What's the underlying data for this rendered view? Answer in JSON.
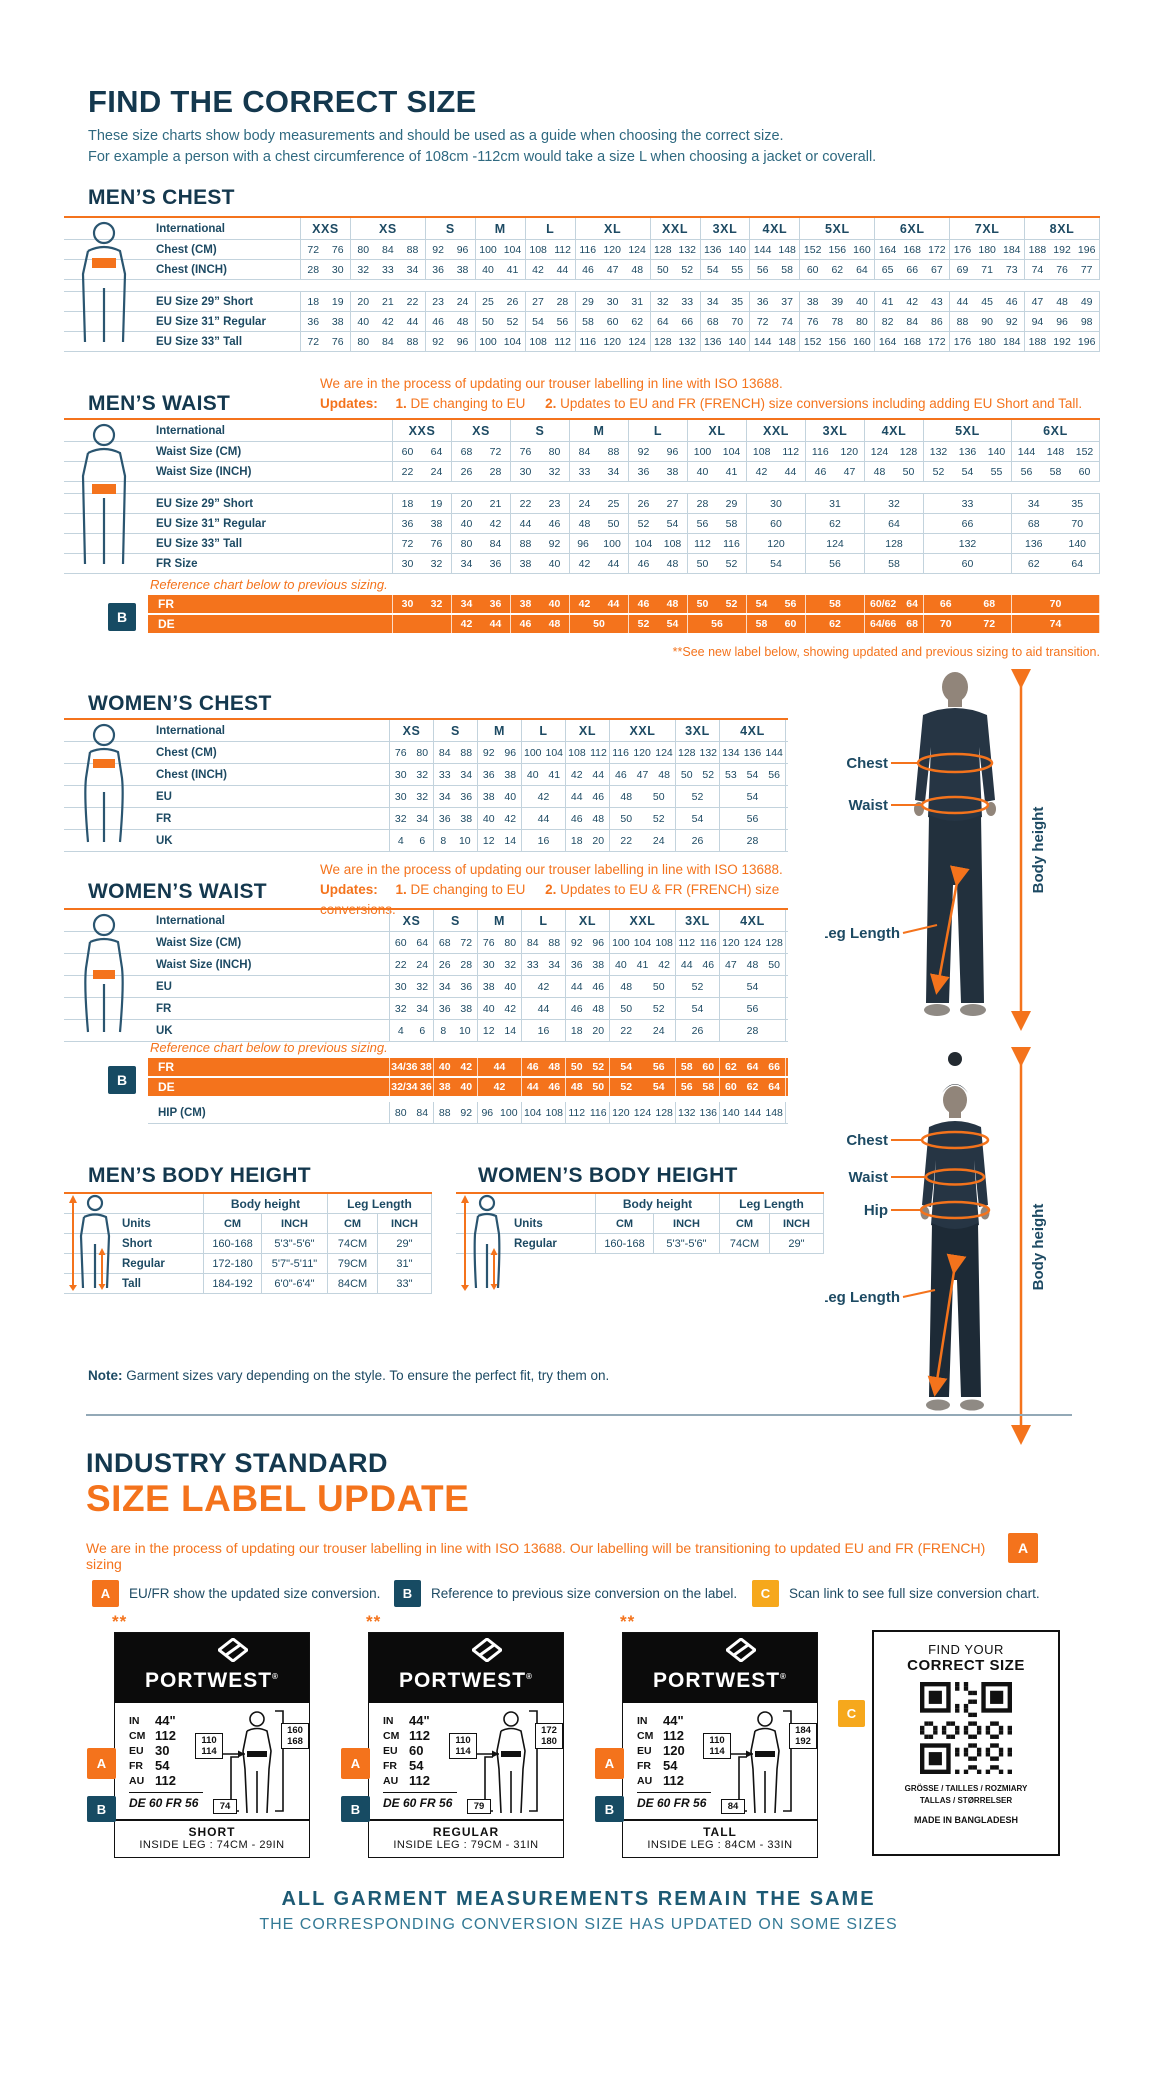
{
  "page": {
    "title": "FIND THE CORRECT SIZE",
    "intro": [
      "These size charts show body measurements and should be used as a guide when choosing the correct size.",
      "For example a person with a chest circumference of 108cm -112cm would take a size L when choosing a jacket or coverall."
    ],
    "note_bold": "Note:",
    "note_rest": " Garment sizes vary depending on the style. To ensure the perfect fit, try them on."
  },
  "colors": {
    "navy": "#14384e",
    "orange": "#f4731c",
    "amber": "#f6a81c",
    "badge_navy": "#174b63"
  },
  "mens_chest": {
    "title": "MEN’S CHEST",
    "corner": "International",
    "groups": [
      "XXS",
      "XS",
      "S",
      "M",
      "L",
      "XL",
      "XXL",
      "3XL",
      "4XL",
      "5XL",
      "6XL",
      "7XL",
      "8XL"
    ],
    "subs": [
      2,
      3,
      2,
      2,
      2,
      3,
      2,
      2,
      2,
      3,
      3,
      3,
      3
    ],
    "rows": [
      {
        "label": "Chest (CM)",
        "cells": [
          "72 76",
          "80 84 88",
          "92 96",
          "100 104",
          "108 112",
          "116 120 124",
          "128 132",
          "136 140",
          "144 148",
          "152 156 160",
          "164 168 172",
          "176 180 184",
          "188 192 196"
        ]
      },
      {
        "label": "Chest (INCH)",
        "cells": [
          "28 30",
          "32 33 34",
          "36 38",
          "40 41",
          "42 44",
          "46 47 48",
          "50 52",
          "54 55",
          "56 58",
          "60 62 64",
          "65 66 67",
          "69 71 73",
          "74 76 77"
        ]
      },
      {
        "spacer": true
      },
      {
        "label": "EU Size 29” Short",
        "cells": [
          "18 19",
          "20 21 22",
          "23 24",
          "25 26",
          "27 28",
          "29 30 31",
          "32 33",
          "34 35",
          "36 37",
          "38 39 40",
          "41 42 43",
          "44 45 46",
          "47 48 49"
        ]
      },
      {
        "label": "EU Size 31” Regular",
        "cells": [
          "36 38",
          "40 42 44",
          "46 48",
          "50 52",
          "54 56",
          "58 60 62",
          "64 66",
          "68 70",
          "72 74",
          "76 78 80",
          "82 84 86",
          "88 90 92",
          "94 96 98"
        ]
      },
      {
        "label": "EU Size 33” Tall",
        "cells": [
          "72 76",
          "80 84 88",
          "92 96",
          "100 104",
          "108 112",
          "116 120 124",
          "128 132",
          "136 140",
          "144 148",
          "152 156 160",
          "164 168 172",
          "176 180 184",
          "188 192 196"
        ]
      }
    ]
  },
  "mens_waist": {
    "title": "MEN’S WAIST",
    "update_note": {
      "line1": "We are in the process of updating our trouser labelling in line with ISO 13688.",
      "updates_label": "Updates:",
      "item1_num": "1.",
      "item1": " DE changing to EU",
      "item2_num": "2.",
      "item2": " Updates to EU and FR (FRENCH) size conversions including adding EU Short and Tall."
    },
    "corner": "International",
    "groups": [
      "XXS",
      "XS",
      "S",
      "M",
      "L",
      "XL",
      "XXL",
      "3XL",
      "4XL",
      "5XL",
      "6XL"
    ],
    "subs": [
      2,
      2,
      2,
      2,
      2,
      2,
      2,
      2,
      2,
      3,
      3
    ],
    "rows": [
      {
        "label": "Waist Size (CM)",
        "cells": [
          "60 64",
          "68 72",
          "76 80",
          "84 88",
          "92 96",
          "100 104",
          "108 112",
          "116 120",
          "124 128",
          "132 136 140",
          "144 148 152"
        ]
      },
      {
        "label": "Waist Size (INCH)",
        "cells": [
          "22 24",
          "26 28",
          "30 32",
          "33 34",
          "36 38",
          "40 41",
          "42 44",
          "46 47",
          "48 50",
          "52 54 55",
          "56 58 60"
        ]
      },
      {
        "spacer": true
      },
      {
        "label": "EU Size 29” Short",
        "cells": [
          "18 19",
          "20 21",
          "22 23",
          "24 25",
          "26 27",
          "28 29",
          "30",
          "31",
          "32",
          "33",
          "34 35"
        ]
      },
      {
        "label": "EU Size 31” Regular",
        "cells": [
          "36 38",
          "40 42",
          "44 46",
          "48 50",
          "52 54",
          "56 58",
          "60",
          "62",
          "64",
          "66",
          "68 70"
        ]
      },
      {
        "label": "EU Size 33” Tall",
        "cells": [
          "72 76",
          "80 84",
          "88 92",
          "96 100",
          "104 108",
          "112 116",
          "120",
          "124",
          "128",
          "132",
          "136 140"
        ]
      },
      {
        "label": "FR Size",
        "cells": [
          "30 32",
          "34 36",
          "38 40",
          "42 44",
          "46 48",
          "50 52",
          "54",
          "56",
          "58",
          "60",
          "62 64"
        ]
      }
    ],
    "reference_note": "Reference chart below to previous sizing.",
    "badge": "B",
    "ref_rows": [
      {
        "label": "FR",
        "cells": [
          "30 32",
          "34 36",
          "38 40",
          "42 44",
          "46 48",
          "50 52",
          "54 56",
          "58",
          "60/62 64",
          "66 68",
          "70"
        ]
      },
      {
        "label": "DE",
        "cells": [
          "",
          "42 44",
          "46 48",
          "50",
          "52 54",
          "56",
          "58 60",
          "62",
          "64/66 68",
          "70 72",
          "74"
        ]
      }
    ],
    "footnote": "**See new label below, showing updated and previous sizing to aid transition."
  },
  "womens_chest": {
    "title": "WOMEN’S CHEST",
    "corner": "International",
    "groups": [
      "XS",
      "S",
      "M",
      "L",
      "XL",
      "XXL",
      "3XL",
      "4XL"
    ],
    "subs": [
      2,
      2,
      2,
      2,
      2,
      3,
      2,
      3
    ],
    "rows": [
      {
        "label": "Chest (CM)",
        "cells": [
          "76 80",
          "84 88",
          "92 96",
          "100 104",
          "108 112",
          "116 120 124",
          "128 132",
          "134 136 144"
        ]
      },
      {
        "label": "Chest (INCH)",
        "cells": [
          "30 32",
          "33 34",
          "36 38",
          "40 41",
          "42 44",
          "46 47 48",
          "50 52",
          "53 54 56"
        ]
      },
      {
        "label": "EU",
        "cells": [
          "30 32",
          "34 36",
          "38 40",
          "42",
          "44 46",
          "48 50",
          "52",
          "54"
        ]
      },
      {
        "label": "FR",
        "cells": [
          "32 34",
          "36 38",
          "40 42",
          "44",
          "46 48",
          "50 52",
          "54",
          "56"
        ]
      },
      {
        "label": "UK",
        "cells": [
          "4 6",
          "8 10",
          "12 14",
          "16",
          "18 20",
          "22 24",
          "26",
          "28"
        ]
      }
    ]
  },
  "womens_waist": {
    "title": "WOMEN’S WAIST",
    "update_note": {
      "line1": "We are in the process of updating our trouser labelling in line with ISO 13688.",
      "updates_label": "Updates:",
      "item1_num": "1.",
      "item1": " DE changing to EU",
      "item2_num": "2.",
      "item2": " Updates to EU & FR (FRENCH) size conversions."
    },
    "corner": "International",
    "groups": [
      "XS",
      "S",
      "M",
      "L",
      "XL",
      "XXL",
      "3XL",
      "4XL"
    ],
    "subs": [
      2,
      2,
      2,
      2,
      2,
      3,
      2,
      3
    ],
    "rows": [
      {
        "label": "Waist Size (CM)",
        "cells": [
          "60 64",
          "68 72",
          "76 80",
          "84 88",
          "92 96",
          "100 104 108",
          "112 116",
          "120 124 128"
        ]
      },
      {
        "label": "Waist Size (INCH)",
        "cells": [
          "22 24",
          "26 28",
          "30 32",
          "33 34",
          "36 38",
          "40 41 42",
          "44 46",
          "47 48 50"
        ]
      },
      {
        "label": "EU",
        "cells": [
          "30 32",
          "34 36",
          "38 40",
          "42",
          "44 46",
          "48 50",
          "52",
          "54"
        ]
      },
      {
        "label": "FR",
        "cells": [
          "32 34",
          "36 38",
          "40 42",
          "44",
          "46 48",
          "50 52",
          "54",
          "56"
        ]
      },
      {
        "label": "UK",
        "cells": [
          "4 6",
          "8 10",
          "12 14",
          "16",
          "18 20",
          "22 24",
          "26",
          "28"
        ]
      }
    ],
    "reference_note": "Reference chart below to previous sizing.",
    "badge": "B",
    "ref_rows": [
      {
        "label": "FR",
        "cells": [
          "34/36 38",
          "40 42",
          "44",
          "46 48",
          "50 52",
          "54 56",
          "58 60",
          "62 64 66"
        ]
      },
      {
        "label": "DE",
        "cells": [
          "32/34 36",
          "38 40",
          "42",
          "44 46",
          "48 50",
          "52 54",
          "56 58",
          "60 62 64"
        ]
      }
    ],
    "hip_rows": [
      {
        "label": "HIP (CM)",
        "cells": [
          "80 84",
          "88 92",
          "96 100",
          "104 108",
          "112 116",
          "120 124 128",
          "132 136",
          "140 144 148"
        ]
      }
    ]
  },
  "figure_annotations": {
    "male": {
      "chest": "Chest",
      "waist": "Waist",
      "leg": "Leg Length",
      "height": "Body height"
    },
    "female": {
      "chest": "Chest",
      "waist": "Waist",
      "hip": "Hip",
      "leg": "Leg Length",
      "height": "Body height"
    }
  },
  "mens_height": {
    "title": "MEN’S BODY HEIGHT",
    "group_headers": [
      "Body height",
      "Leg Length"
    ],
    "units_label": "Units",
    "units": [
      "CM",
      "INCH",
      "CM",
      "INCH"
    ],
    "rows": [
      {
        "label": "Short",
        "cells": [
          "160-168",
          "5'3\"-5'6\"",
          "74CM",
          "29\""
        ]
      },
      {
        "label": "Regular",
        "cells": [
          "172-180",
          "5'7\"-5'11\"",
          "79CM",
          "31\""
        ]
      },
      {
        "label": "Tall",
        "cells": [
          "184-192",
          "6'0\"-6'4\"",
          "84CM",
          "33\""
        ]
      }
    ]
  },
  "womens_height": {
    "title": "WOMEN’S BODY HEIGHT",
    "group_headers": [
      "Body height",
      "Leg Length"
    ],
    "units_label": "Units",
    "units": [
      "CM",
      "INCH",
      "CM",
      "INCH"
    ],
    "rows": [
      {
        "label": "Regular",
        "cells": [
          "160-168",
          "5'3\"-5'6\"",
          "74CM",
          "29\""
        ]
      }
    ]
  },
  "industry": {
    "heading1": "INDUSTRY STANDARD",
    "heading2": "SIZE LABEL UPDATE",
    "paragraph": "We are in the process of updating our trouser labelling in line with ISO 13688. Our labelling will be transitioning to updated EU and FR (FRENCH) sizing",
    "badge_a": "A",
    "legend": [
      {
        "badge": "A",
        "text": "EU/FR show the updated size conversion."
      },
      {
        "badge": "B",
        "text": "Reference to previous size conversion on the label."
      },
      {
        "badge": "C",
        "text": "Scan link to see full size conversion chart."
      }
    ]
  },
  "labels": [
    {
      "stars": "**",
      "brand": "PORTWEST",
      "reg": "®",
      "specs": [
        [
          "IN",
          "44\""
        ],
        [
          "CM",
          "112"
        ],
        [
          "EU",
          "30"
        ],
        [
          "FR",
          "54"
        ],
        [
          "AU",
          "112"
        ]
      ],
      "prev": "DE 60 FR 56",
      "waist_box": [
        "110",
        "114"
      ],
      "height_box": [
        "160",
        "168"
      ],
      "leg_box": "74",
      "fit": "SHORT",
      "inside_leg": "INSIDE LEG : 74CM - 29IN"
    },
    {
      "stars": "**",
      "brand": "PORTWEST",
      "reg": "®",
      "specs": [
        [
          "IN",
          "44\""
        ],
        [
          "CM",
          "112"
        ],
        [
          "EU",
          "60"
        ],
        [
          "FR",
          "54"
        ],
        [
          "AU",
          "112"
        ]
      ],
      "prev": "DE 60 FR 56",
      "waist_box": [
        "110",
        "114"
      ],
      "height_box": [
        "172",
        "180"
      ],
      "leg_box": "79",
      "fit": "REGULAR",
      "inside_leg": "INSIDE LEG : 79CM - 31IN"
    },
    {
      "stars": "**",
      "brand": "PORTWEST",
      "reg": "®",
      "specs": [
        [
          "IN",
          "44\""
        ],
        [
          "CM",
          "112"
        ],
        [
          "EU",
          "120"
        ],
        [
          "FR",
          "54"
        ],
        [
          "AU",
          "112"
        ]
      ],
      "prev": "DE 60 FR 56",
      "waist_box": [
        "110",
        "114"
      ],
      "height_box": [
        "184",
        "192"
      ],
      "leg_box": "84",
      "fit": "TALL",
      "inside_leg": "INSIDE LEG : 84CM - 33IN"
    }
  ],
  "qr_card": {
    "badge": "C",
    "title1": "FIND YOUR",
    "title2": "CORRECT SIZE",
    "languages1": "GRÖSSE / TAILLES / ROZMIARY",
    "languages2": "TALLAS / STØRRELSER",
    "made_in": "MADE IN BANGLADESH"
  },
  "footer": {
    "line1": "ALL GARMENT MEASUREMENTS REMAIN THE SAME",
    "line2": "THE CORRESPONDING CONVERSION SIZE HAS UPDATED ON SOME SIZES"
  }
}
